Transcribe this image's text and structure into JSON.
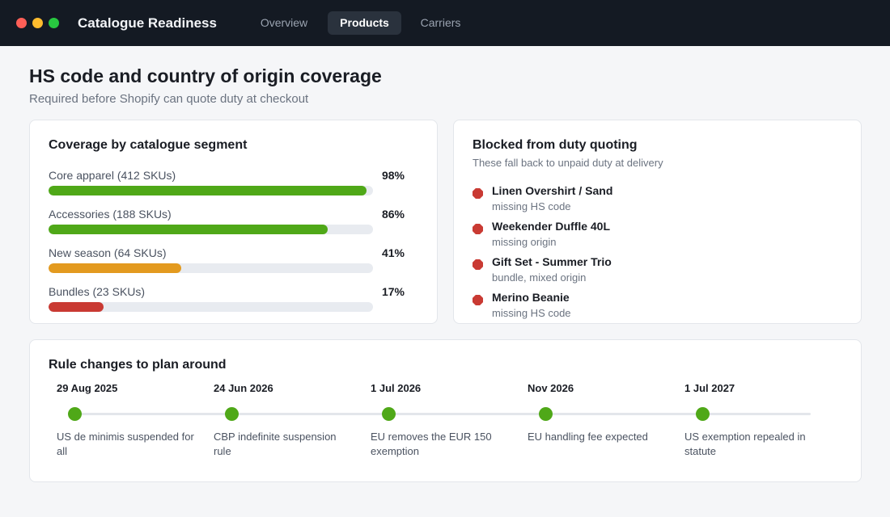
{
  "window": {
    "controls": [
      {
        "name": "close",
        "color": "#ff5f57"
      },
      {
        "name": "minimize",
        "color": "#febc2e"
      },
      {
        "name": "zoom",
        "color": "#28c840"
      }
    ]
  },
  "app": {
    "title": "Catalogue Readiness",
    "tabs": [
      {
        "label": "Overview",
        "active": false
      },
      {
        "label": "Products",
        "active": true
      },
      {
        "label": "Carriers",
        "active": false
      }
    ]
  },
  "page": {
    "title": "HS code and country of origin coverage",
    "subtitle": "Required before Shopify can quote duty at checkout"
  },
  "coverage": {
    "title": "Coverage by catalogue segment",
    "segments": [
      {
        "label": "Core apparel (412 SKUs)",
        "percent_text": "98%",
        "percent": 98,
        "color": "#4fa818"
      },
      {
        "label": "Accessories (188 SKUs)",
        "percent_text": "86%",
        "percent": 86,
        "color": "#4fa818"
      },
      {
        "label": "New season (64 SKUs)",
        "percent_text": "41%",
        "percent": 41,
        "color": "#e39a1f"
      },
      {
        "label": "Bundles (23 SKUs)",
        "percent_text": "17%",
        "percent": 17,
        "color": "#c93a33"
      }
    ]
  },
  "blocked": {
    "title": "Blocked from duty quoting",
    "subtitle": "These fall back to unpaid duty at delivery",
    "icon": "blocked-octagon-icon",
    "items": [
      {
        "name": "Linen Overshirt / Sand",
        "reason": "missing HS code"
      },
      {
        "name": "Weekender Duffle 40L",
        "reason": "missing origin"
      },
      {
        "name": "Gift Set - Summer Trio",
        "reason": "bundle, mixed origin"
      },
      {
        "name": "Merino Beanie",
        "reason": "missing HS code"
      }
    ]
  },
  "timeline": {
    "title": "Rule changes to plan around",
    "events": [
      {
        "date": "29 Aug 2025",
        "description": "US de minimis suspended for all"
      },
      {
        "date": "24 Jun 2026",
        "description": "CBP indefinite suspension rule"
      },
      {
        "date": "1 Jul 2026",
        "description": "EU removes the EUR 150 exemption"
      },
      {
        "date": "Nov 2026",
        "description": "EU handling fee expected"
      },
      {
        "date": "1 Jul 2027",
        "description": "US exemption repealed in statute"
      }
    ]
  }
}
